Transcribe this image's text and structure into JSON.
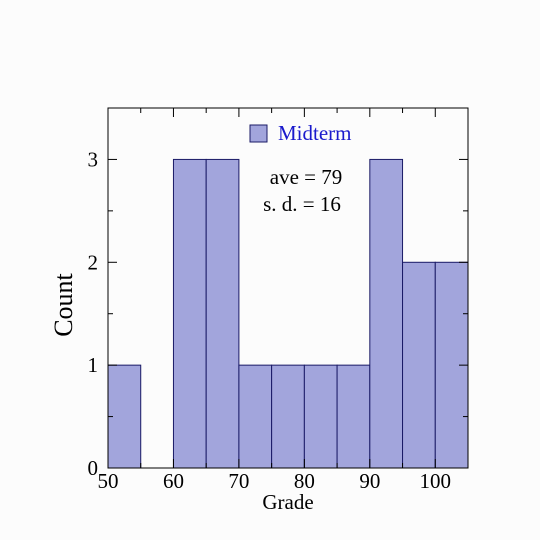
{
  "chart_data": {
    "type": "bar",
    "title": "",
    "xlabel": "Grade",
    "ylabel": "Count",
    "xlim": [
      50,
      105
    ],
    "ylim": [
      0,
      3.5
    ],
    "bins": [
      {
        "x0": 50,
        "x1": 55,
        "count": 1
      },
      {
        "x0": 55,
        "x1": 60,
        "count": 0
      },
      {
        "x0": 60,
        "x1": 65,
        "count": 3
      },
      {
        "x0": 65,
        "x1": 70,
        "count": 3
      },
      {
        "x0": 70,
        "x1": 75,
        "count": 1
      },
      {
        "x0": 75,
        "x1": 80,
        "count": 1
      },
      {
        "x0": 80,
        "x1": 85,
        "count": 1
      },
      {
        "x0": 85,
        "x1": 90,
        "count": 1
      },
      {
        "x0": 90,
        "x1": 95,
        "count": 3
      },
      {
        "x0": 95,
        "x1": 100,
        "count": 2
      },
      {
        "x0": 100,
        "x1": 105,
        "count": 2
      }
    ],
    "x_ticks": [
      50,
      60,
      70,
      80,
      90,
      100
    ],
    "y_ticks": [
      0,
      1,
      2,
      3
    ],
    "series": [
      {
        "name": "Midterm"
      }
    ],
    "annotations": [
      "ave = 79",
      "s. d. = 16"
    ],
    "legend_position": "top-center",
    "grid": false,
    "colors": {
      "bar_fill": "#a2a5dc",
      "bar_edge": "#1a1a66",
      "legend_text": "#1a1acc"
    }
  }
}
